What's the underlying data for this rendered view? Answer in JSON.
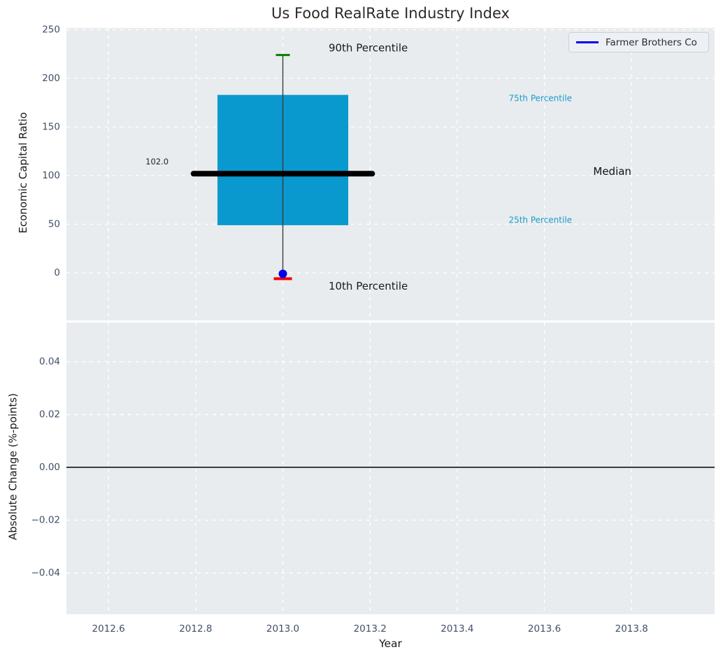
{
  "figure": {
    "title": "Us Food RealRate Industry Index",
    "legend": {
      "label": "Farmer Brothers Co"
    }
  },
  "colors": {
    "axes_bg": "#e9ecee",
    "grid": "#ffffff",
    "box_fill": "#0999ce",
    "whisker": "#3c3c3c",
    "p90_cap": "#008000",
    "p10_cap": "#ee0000",
    "median_line": "#000000",
    "marker": "#0000ee",
    "legend_line": "#0000ee",
    "zero_line": "#000000",
    "tick_text": "#404f68",
    "percentile_text": "#1b9ace"
  },
  "chart_data": [
    {
      "type": "boxplot",
      "title": "Us Food RealRate Industry Index",
      "ylabel": "Economic Capital Ratio",
      "grid": true,
      "legend_position": "upper right",
      "xlim": [
        2012.5035,
        2013.9905
      ],
      "ylim": [
        -48.9,
        251.8
      ],
      "yticks": [
        0,
        50,
        100,
        150,
        200,
        250
      ],
      "ytick_labels": [
        "0",
        "50",
        "100",
        "150",
        "200",
        "250"
      ],
      "xticks": [
        2012.6,
        2012.8,
        2013.0,
        2013.2,
        2013.4,
        2013.6,
        2013.8
      ],
      "box": {
        "x": 2013.0,
        "x_left": 2012.85,
        "x_right": 2013.15,
        "p10": -6,
        "p25": 49,
        "median": 102,
        "p75": 183,
        "p90": 224,
        "median_label": "102.0",
        "median_line_x_left": 2012.795,
        "median_line_x_right": 2013.205
      },
      "company_point": {
        "label": "Farmer Brothers Co",
        "x": 2013.0,
        "y": -1
      },
      "annotations": [
        {
          "text": "90th Percentile",
          "x": 2013.105,
          "y": 231,
          "color": "#1a1a1a",
          "size": 15
        },
        {
          "text": "10th Percentile",
          "x": 2013.105,
          "y": -14,
          "color": "#1a1a1a",
          "size": 15
        },
        {
          "text": "75th Percentile",
          "x": 2013.518,
          "y": 179,
          "color": "#1b9ace",
          "size": 12
        },
        {
          "text": "25th Percentile",
          "x": 2013.518,
          "y": 54,
          "color": "#1b9ace",
          "size": 12
        },
        {
          "text": "Median",
          "x": 2013.712,
          "y": 104,
          "color": "#111111",
          "size": 15
        },
        {
          "text": "102.0",
          "x": 2012.685,
          "y": 114,
          "color": "#222222",
          "size": 11.5
        }
      ]
    },
    {
      "type": "line",
      "ylabel": "Absolute Change (%-points)",
      "xlabel": "Year",
      "grid": true,
      "xlim": [
        2012.5035,
        2013.9905
      ],
      "ylim": [
        -0.0556,
        0.0548
      ],
      "yticks": [
        0.04,
        0.02,
        0.0,
        -0.02,
        -0.04
      ],
      "ytick_labels": [
        "0.04",
        "0.02",
        "0.00",
        "−0.02",
        "−0.04"
      ],
      "xticks": [
        2012.6,
        2012.8,
        2013.0,
        2013.2,
        2013.4,
        2013.6,
        2013.8
      ],
      "xtick_labels": [
        "2012.6",
        "2012.8",
        "2013.0",
        "2013.2",
        "2013.4",
        "2013.6",
        "2013.8"
      ],
      "zero_line_y": 0.0,
      "series": []
    }
  ]
}
